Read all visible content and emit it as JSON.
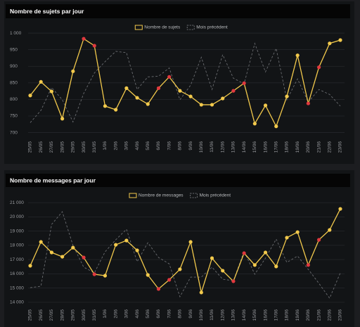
{
  "chart_data": [
    {
      "type": "line",
      "title": "Nombre de sujets par jour",
      "categories": [
        "25/05",
        "26/05",
        "27/05",
        "28/05",
        "29/05",
        "30/05",
        "31/05",
        "1/06",
        "2/06",
        "3/06",
        "4/06",
        "5/06",
        "6/06",
        "7/06",
        "8/06",
        "9/06",
        "10/06",
        "11/06",
        "12/06",
        "13/06",
        "14/06",
        "15/06",
        "16/06",
        "17/06",
        "18/06",
        "19/06",
        "20/06",
        "21/06",
        "22/06",
        "23/06"
      ],
      "series": [
        {
          "name": "Nombre de sujets",
          "color": "#f2c94c",
          "dashed": false,
          "values": [
            812,
            853,
            824,
            742,
            885,
            983,
            962,
            780,
            769,
            834,
            805,
            786,
            834,
            868,
            826,
            809,
            784,
            784,
            803,
            826,
            849,
            727,
            782,
            719,
            809,
            933,
            788,
            897,
            969,
            979
          ],
          "marker_colors": [
            "#f2c94c",
            "#f2c94c",
            "#f2c94c",
            "#f2c94c",
            "#f2c94c",
            "#e0383e",
            "#e0383e",
            "#f2c94c",
            "#f2c94c",
            "#f2c94c",
            "#f2c94c",
            "#f2c94c",
            "#e0383e",
            "#e0383e",
            "#f2c94c",
            "#f2c94c",
            "#f2c94c",
            "#f2c94c",
            "#f2c94c",
            "#e0383e",
            "#e0383e",
            "#f2c94c",
            "#f2c94c",
            "#f2c94c",
            "#f2c94c",
            "#f2c94c",
            "#e0383e",
            "#e0383e",
            "#f2c94c",
            "#f2c94c"
          ]
        },
        {
          "name": "Mois précédent",
          "color": "#6a6c70",
          "dashed": true,
          "values": [
            730,
            767,
            836,
            799,
            732,
            818,
            880,
            914,
            945,
            941,
            830,
            868,
            870,
            895,
            799,
            843,
            927,
            830,
            935,
            864,
            847,
            969,
            883,
            954,
            799,
            862,
            792,
            830,
            815,
            780
          ]
        }
      ],
      "ylim": [
        680,
        1015
      ],
      "yticks": [
        700,
        750,
        800,
        850,
        900,
        950,
        {
          "value": 1000,
          "label": "1 000"
        }
      ],
      "grid": true,
      "legend": "top"
    },
    {
      "type": "line",
      "title": "Nombre de messages par jour",
      "categories": [
        "25/05",
        "26/05",
        "27/05",
        "28/05",
        "29/05",
        "30/05",
        "31/05",
        "1/06",
        "2/06",
        "3/06",
        "4/06",
        "5/06",
        "6/06",
        "7/06",
        "8/06",
        "9/06",
        "10/06",
        "11/06",
        "12/06",
        "13/06",
        "14/06",
        "15/06",
        "16/06",
        "17/06",
        "18/06",
        "19/06",
        "20/06",
        "21/06",
        "22/06",
        "23/06"
      ],
      "series": [
        {
          "name": "Nombre de messages",
          "color": "#f2c94c",
          "dashed": false,
          "values": [
            16570,
            18240,
            17500,
            17200,
            17840,
            17150,
            15970,
            15870,
            18040,
            18340,
            17650,
            15920,
            14940,
            15580,
            16320,
            18240,
            14690,
            17100,
            16220,
            15480,
            17450,
            16620,
            17500,
            16520,
            18540,
            18930,
            16620,
            18390,
            19080,
            20560
          ],
          "marker_colors": [
            "#f2c94c",
            "#f2c94c",
            "#f2c94c",
            "#f2c94c",
            "#f2c94c",
            "#e0383e",
            "#e0383e",
            "#f2c94c",
            "#f2c94c",
            "#f2c94c",
            "#f2c94c",
            "#f2c94c",
            "#e0383e",
            "#e0383e",
            "#f2c94c",
            "#f2c94c",
            "#f2c94c",
            "#f2c94c",
            "#f2c94c",
            "#e0383e",
            "#e0383e",
            "#f2c94c",
            "#f2c94c",
            "#f2c94c",
            "#f2c94c",
            "#f2c94c",
            "#e0383e",
            "#e0383e",
            "#f2c94c",
            "#f2c94c"
          ]
        },
        {
          "name": "Mois précédent",
          "color": "#6a6c70",
          "dashed": true,
          "values": [
            15030,
            15130,
            19470,
            20360,
            17990,
            16470,
            16070,
            17550,
            18390,
            19130,
            16850,
            18190,
            17150,
            16700,
            14390,
            15770,
            15770,
            16470,
            15620,
            15520,
            17590,
            15970,
            17100,
            18440,
            16800,
            17250,
            16320,
            15330,
            14290,
            16070
          ]
        }
      ],
      "ylim": [
        13650,
        21500
      ],
      "yticks": [
        {
          "value": 14000,
          "label": "14 000"
        },
        {
          "value": 15000,
          "label": "15 000"
        },
        {
          "value": 16000,
          "label": "16 000"
        },
        {
          "value": 17000,
          "label": "17 000"
        },
        {
          "value": 18000,
          "label": "18 000"
        },
        {
          "value": 19000,
          "label": "19 000"
        },
        {
          "value": 20000,
          "label": "20 000"
        },
        {
          "value": 21000,
          "label": "21 000"
        }
      ],
      "grid": true,
      "legend": "top"
    }
  ]
}
